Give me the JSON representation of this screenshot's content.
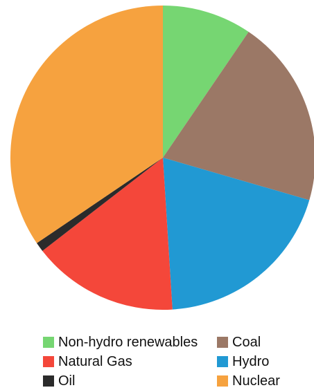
{
  "chart_data": {
    "type": "pie",
    "title": "",
    "start": "top, clockwise",
    "slices": [
      {
        "label": "Non-hydro renewables",
        "value": 9.5,
        "color": "#76d672"
      },
      {
        "label": "Coal",
        "value": 20.0,
        "color": "#9b7866"
      },
      {
        "label": "Hydro",
        "value": 19.5,
        "color": "#2199d3"
      },
      {
        "label": "Natural Gas",
        "value": 15.5,
        "color": "#f4473a"
      },
      {
        "label": "Oil",
        "value": 1.0,
        "color": "#2b2b2b"
      },
      {
        "label": "Nuclear",
        "value": 34.5,
        "color": "#f6a23f"
      }
    ],
    "legend": {
      "placement": "bottom",
      "order": [
        "Non-hydro renewables",
        "Coal",
        "Natural Gas",
        "Hydro",
        "Oil",
        "Nuclear"
      ]
    }
  }
}
